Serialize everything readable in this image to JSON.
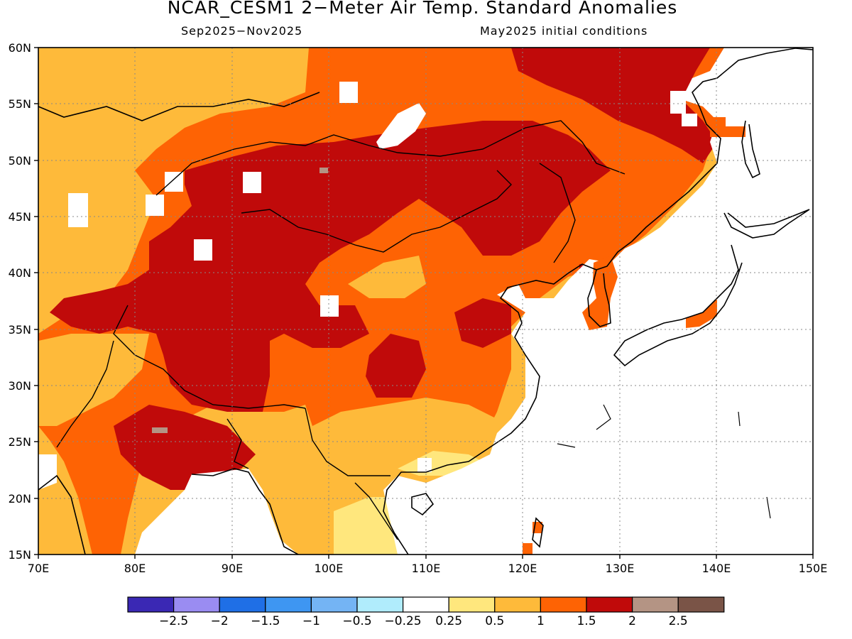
{
  "header": {
    "title": "NCAR_CESM1 2−Meter Air Temp. Standard Anomalies",
    "period": "Sep2025−Nov2025",
    "initial_conditions": "May2025 initial conditions"
  },
  "map": {
    "region": "East Asia",
    "lon_range": [
      70,
      150
    ],
    "lat_range": [
      15,
      60
    ],
    "lon_ticks": [
      "70E",
      "80E",
      "90E",
      "100E",
      "110E",
      "120E",
      "130E",
      "140E",
      "150E"
    ],
    "lat_ticks": [
      "60N",
      "55N",
      "50N",
      "45N",
      "40N",
      "35N",
      "30N",
      "25N",
      "20N",
      "15N"
    ],
    "grid": "dotted"
  },
  "legend": {
    "colors": [
      "#3a28b4",
      "#9a8cf2",
      "#1f6fe6",
      "#3e96f2",
      "#74b4f4",
      "#b0ecfc",
      "#ffffff",
      "#ffe77d",
      "#feba3a",
      "#fe6304",
      "#c00a0a",
      "#b49484",
      "#7a5447"
    ],
    "labels": [
      "−2.5",
      "−2",
      "−1.5",
      "−1",
      "−0.5",
      "−0.25",
      "0.25",
      "0.5",
      "1",
      "1.5",
      "2",
      "2.5"
    ]
  }
}
